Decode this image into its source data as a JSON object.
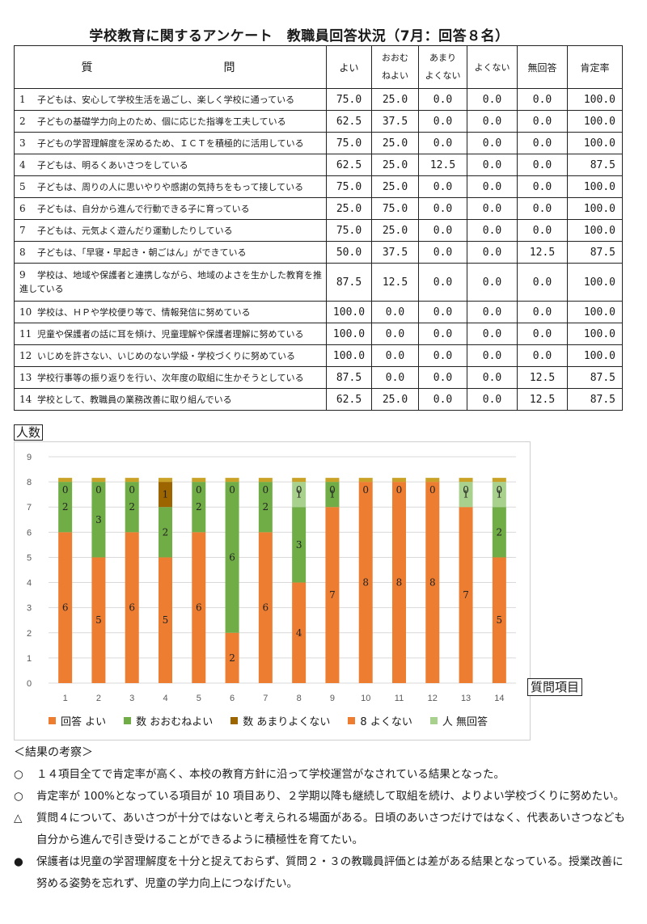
{
  "title": "学校教育に関するアンケート　教職員回答状況（7月：回答８名）",
  "table": {
    "headers": {
      "question": "質　　　問",
      "yoi": "よい",
      "oomune_1": "おおむ",
      "oomune_2": "ねよい",
      "amari_1": "あまり",
      "amari_2": "よくない",
      "yokunai": "よくない",
      "mukaitou": "無回答",
      "kouteiritsu": "肯定率"
    },
    "rows": [
      {
        "num": "1",
        "text": "子どもは、安心して学校生活を過ごし、楽しく学校に通っている",
        "yoi": "75.0",
        "oomune": "25.0",
        "amari": "0.0",
        "yokunai": "0.0",
        "mukaitou": "0.0",
        "kouteiritsu": "100.0"
      },
      {
        "num": "2",
        "text": "子どもの基礎学力向上のため、個に応じた指導を工夫している",
        "yoi": "62.5",
        "oomune": "37.5",
        "amari": "0.0",
        "yokunai": "0.0",
        "mukaitou": "0.0",
        "kouteiritsu": "100.0"
      },
      {
        "num": "3",
        "text": "子どもの学習理解度を深めるため、ＩＣＴを積極的に活用している",
        "yoi": "75.0",
        "oomune": "25.0",
        "amari": "0.0",
        "yokunai": "0.0",
        "mukaitou": "0.0",
        "kouteiritsu": "100.0"
      },
      {
        "num": "4",
        "text": "子どもは、明るくあいさつをしている",
        "yoi": "62.5",
        "oomune": "25.0",
        "amari": "12.5",
        "yokunai": "0.0",
        "mukaitou": "0.0",
        "kouteiritsu": "87.5"
      },
      {
        "num": "5",
        "text": "子どもは、周りの人に思いやりや感謝の気持ちをもって接している",
        "yoi": "75.0",
        "oomune": "25.0",
        "amari": "0.0",
        "yokunai": "0.0",
        "mukaitou": "0.0",
        "kouteiritsu": "100.0"
      },
      {
        "num": "6",
        "text": "子どもは、自分から進んで行動できる子に育っている",
        "yoi": "25.0",
        "oomune": "75.0",
        "amari": "0.0",
        "yokunai": "0.0",
        "mukaitou": "0.0",
        "kouteiritsu": "100.0"
      },
      {
        "num": "7",
        "text": "子どもは、元気よく遊んだり運動したりしている",
        "yoi": "75.0",
        "oomune": "25.0",
        "amari": "0.0",
        "yokunai": "0.0",
        "mukaitou": "0.0",
        "kouteiritsu": "100.0"
      },
      {
        "num": "8",
        "text": "子どもは、「早寝・早起き・朝ごはん」ができている",
        "yoi": "50.0",
        "oomune": "37.5",
        "amari": "0.0",
        "yokunai": "0.0",
        "mukaitou": "12.5",
        "kouteiritsu": "87.5"
      },
      {
        "num": "9",
        "text": "学校は、地域や保護者と連携しながら、地域のよさを生かした教育を推進している",
        "yoi": "87.5",
        "oomune": "12.5",
        "amari": "0.0",
        "yokunai": "0.0",
        "mukaitou": "0.0",
        "kouteiritsu": "100.0"
      },
      {
        "num": "10",
        "text": "学校は、ＨＰや学校便り等で、情報発信に努めている",
        "yoi": "100.0",
        "oomune": "0.0",
        "amari": "0.0",
        "yokunai": "0.0",
        "mukaitou": "0.0",
        "kouteiritsu": "100.0"
      },
      {
        "num": "11",
        "text": "児童や保護者の話に耳を傾け、児童理解や保護者理解に努めている",
        "yoi": "100.0",
        "oomune": "0.0",
        "amari": "0.0",
        "yokunai": "0.0",
        "mukaitou": "0.0",
        "kouteiritsu": "100.0"
      },
      {
        "num": "12",
        "text": "いじめを許さない、いじめのない学級・学校づくりに努めている",
        "yoi": "100.0",
        "oomune": "0.0",
        "amari": "0.0",
        "yokunai": "0.0",
        "mukaitou": "0.0",
        "kouteiritsu": "100.0"
      },
      {
        "num": "13",
        "text": "学校行事等の振り返りを行い、次年度の取組に生かそうとしている",
        "yoi": "87.5",
        "oomune": "0.0",
        "amari": "0.0",
        "yokunai": "0.0",
        "mukaitou": "12.5",
        "kouteiritsu": "87.5"
      },
      {
        "num": "14",
        "text": "学校として、教職員の業務改善に取り組んでいる",
        "yoi": "62.5",
        "oomune": "25.0",
        "amari": "0.0",
        "yokunai": "0.0",
        "mukaitou": "12.5",
        "kouteiritsu": "87.5"
      }
    ]
  },
  "chart_data": {
    "type": "bar",
    "stacked": true,
    "ylabel": "人数",
    "xlabel": "質問項目",
    "categories": [
      "1",
      "2",
      "3",
      "4",
      "5",
      "6",
      "7",
      "8",
      "9",
      "10",
      "11",
      "12",
      "13",
      "14"
    ],
    "ylim": [
      0,
      9
    ],
    "yticks": [
      "0",
      "1",
      "2",
      "3",
      "4",
      "5",
      "6",
      "7",
      "8",
      "9"
    ],
    "grid": true,
    "legend_position": "bottom",
    "series": [
      {
        "name": "回答 よい",
        "color": "#ED7D31",
        "values": [
          6,
          5,
          6,
          5,
          6,
          2,
          6,
          4,
          7,
          8,
          8,
          8,
          7,
          5
        ]
      },
      {
        "name": "数 おおむねよい",
        "color": "#70AD47",
        "values": [
          2,
          3,
          2,
          2,
          2,
          6,
          2,
          3,
          1,
          0,
          0,
          0,
          0,
          2
        ]
      },
      {
        "name": "数 あまりよくない",
        "color": "#9C6500",
        "values": [
          0,
          0,
          0,
          1,
          0,
          0,
          0,
          0,
          0,
          0,
          0,
          0,
          0,
          0
        ]
      },
      {
        "name": "8 よくない",
        "color": "#ED7D31",
        "values": [
          0,
          0,
          0,
          0,
          0,
          0,
          0,
          0,
          0,
          0,
          0,
          0,
          0,
          0
        ]
      },
      {
        "name": "人 無回答",
        "color": "#A9D18E",
        "values": [
          0,
          0,
          0,
          0,
          0,
          0,
          0,
          1,
          0,
          0,
          0,
          0,
          1,
          1
        ]
      }
    ],
    "cap_color": "#C9A227"
  },
  "notes": {
    "heading": "＜結果の考察＞",
    "items": [
      {
        "bullet": "○",
        "text": "１４項目全てで肯定率が高く、本校の教育方針に沿って学校運営がなされている結果となった。"
      },
      {
        "bullet": "○",
        "text": "肯定率が 100%となっている項目が 10 項目あり、２学期以降も継続して取組を続け、よりよい学校づくりに努めたい。"
      },
      {
        "bullet": "△",
        "text": "質問４について、あいさつが十分ではないと考えられる場面がある。日頃のあいさつだけではなく、代表あいさつなども自分から進んで引き受けることができるように積極性を育てたい。"
      },
      {
        "bullet": "●",
        "text": "保護者は児童の学習理解度を十分と捉えておらず、質問２・３の教職員評価とは差がある結果となっている。授業改善に努める姿勢を忘れず、児童の学力向上につなげたい。"
      }
    ]
  }
}
